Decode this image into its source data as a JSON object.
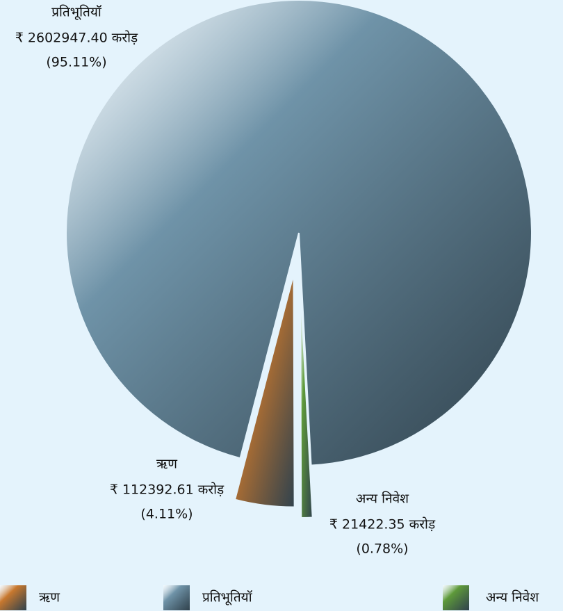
{
  "chart_data": {
    "type": "pie",
    "categories": [
      "ऋण",
      "प्रतिभूतियॉ",
      "अन्य निवेश"
    ],
    "values": [
      4.11,
      95.11,
      0.78
    ],
    "value_labels": [
      "(4.11%)",
      "(95.11%)",
      "(0.78%)"
    ],
    "amount_labels": [
      "₹ 112392.61 करोड़",
      "₹ 2602947.40 करोड़",
      "₹ 21422.35 करोड़"
    ],
    "colors": [
      "#c8782e",
      "#6f93a8",
      "#5e9a3a"
    ]
  }
}
